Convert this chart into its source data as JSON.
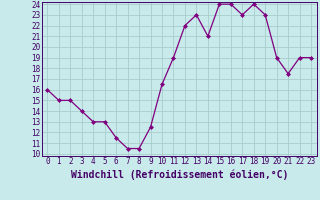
{
  "x": [
    0,
    1,
    2,
    3,
    4,
    5,
    6,
    7,
    8,
    9,
    10,
    11,
    12,
    13,
    14,
    15,
    16,
    17,
    18,
    19,
    20,
    21,
    22,
    23
  ],
  "y": [
    16,
    15,
    15,
    14,
    13,
    13,
    11.5,
    10.5,
    10.5,
    12.5,
    16.5,
    19,
    22,
    23,
    21,
    24,
    24,
    23,
    24,
    23,
    19,
    17.5,
    19,
    19
  ],
  "line_color": "#800080",
  "marker": "D",
  "marker_size": 2,
  "bg_color": "#c8eaea",
  "grid_color": "#a8cccc",
  "xlabel": "Windchill (Refroidissement éolien,°C)",
  "ylim": [
    10,
    24
  ],
  "xlim": [
    -0.5,
    23.5
  ],
  "yticks": [
    10,
    11,
    12,
    13,
    14,
    15,
    16,
    17,
    18,
    19,
    20,
    21,
    22,
    23,
    24
  ],
  "xticks": [
    0,
    1,
    2,
    3,
    4,
    5,
    6,
    7,
    8,
    9,
    10,
    11,
    12,
    13,
    14,
    15,
    16,
    17,
    18,
    19,
    20,
    21,
    22,
    23
  ],
  "tick_label_fontsize": 5.5,
  "xlabel_fontsize": 7,
  "label_color": "#440066",
  "linewidth": 0.9
}
